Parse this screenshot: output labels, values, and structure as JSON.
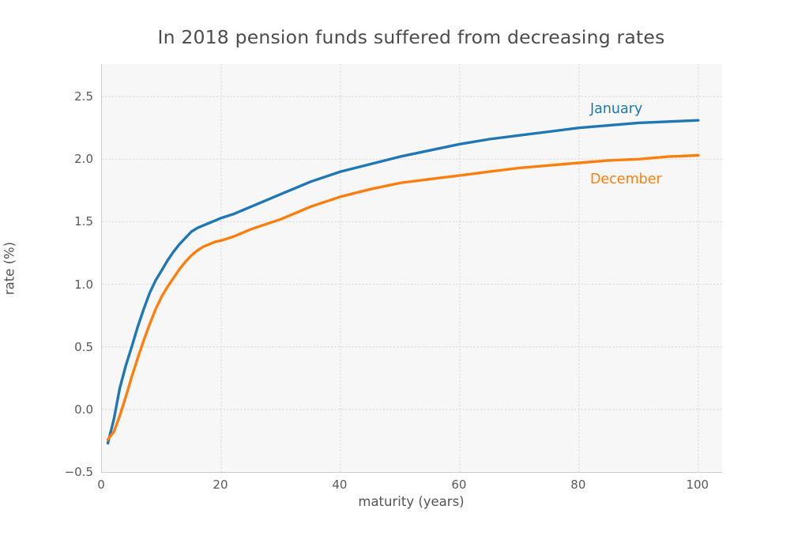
{
  "title": "In 2018 pension funds suffered from decreasing rates",
  "chart_data": {
    "type": "line",
    "title": "In 2018 pension funds suffered from decreasing rates",
    "xlabel": "maturity (years)",
    "ylabel": "rate (%)",
    "xlim": [
      0,
      104
    ],
    "ylim": [
      -0.5,
      2.76
    ],
    "grid": "dotted",
    "legend_position": "inline-annotations",
    "xticks": [
      {
        "v": 0,
        "label": "0"
      },
      {
        "v": 20,
        "label": "20"
      },
      {
        "v": 40,
        "label": "40"
      },
      {
        "v": 60,
        "label": "60"
      },
      {
        "v": 80,
        "label": "80"
      },
      {
        "v": 100,
        "label": "100"
      }
    ],
    "yticks": [
      {
        "v": -0.5,
        "label": "−0.5"
      },
      {
        "v": 0.0,
        "label": "0.0"
      },
      {
        "v": 0.5,
        "label": "0.5"
      },
      {
        "v": 1.0,
        "label": "1.0"
      },
      {
        "v": 1.5,
        "label": "1.5"
      },
      {
        "v": 2.0,
        "label": "2.0"
      },
      {
        "v": 2.5,
        "label": "2.5"
      }
    ],
    "x": [
      1,
      2,
      3,
      4,
      5,
      6,
      7,
      8,
      9,
      10,
      11,
      12,
      13,
      14,
      15,
      16,
      17,
      18,
      19,
      20,
      22,
      25,
      30,
      35,
      40,
      45,
      50,
      55,
      60,
      65,
      70,
      75,
      80,
      85,
      90,
      95,
      100
    ],
    "series": [
      {
        "name": "January",
        "color": "#1f77b4",
        "values": [
          -0.27,
          -0.08,
          0.17,
          0.35,
          0.5,
          0.66,
          0.8,
          0.93,
          1.03,
          1.11,
          1.19,
          1.26,
          1.32,
          1.37,
          1.42,
          1.45,
          1.47,
          1.49,
          1.51,
          1.53,
          1.56,
          1.62,
          1.72,
          1.82,
          1.9,
          1.96,
          2.02,
          2.07,
          2.12,
          2.16,
          2.19,
          2.22,
          2.25,
          2.27,
          2.29,
          2.3,
          2.31
        ]
      },
      {
        "name": "December",
        "color": "#ff7f0e",
        "values": [
          -0.24,
          -0.18,
          -0.05,
          0.1,
          0.26,
          0.41,
          0.55,
          0.68,
          0.8,
          0.9,
          0.98,
          1.05,
          1.12,
          1.18,
          1.23,
          1.27,
          1.3,
          1.32,
          1.34,
          1.35,
          1.38,
          1.44,
          1.52,
          1.62,
          1.7,
          1.76,
          1.81,
          1.84,
          1.87,
          1.9,
          1.93,
          1.95,
          1.97,
          1.99,
          2.0,
          2.02,
          2.03
        ]
      }
    ],
    "annotations": [
      {
        "text": "January",
        "color": "#1f77b4",
        "x": 82,
        "y": 2.4
      },
      {
        "text": "December",
        "color": "#ff7f0e",
        "x": 82,
        "y": 1.84
      }
    ]
  },
  "style": {
    "panel_bg": "#f7f7f7",
    "grid_color": "#d9d9d9",
    "spine_color": "#cccccc",
    "title_color": "#4c4c4c",
    "tick_color": "#5a5a5a",
    "line_width": 3.4
  }
}
